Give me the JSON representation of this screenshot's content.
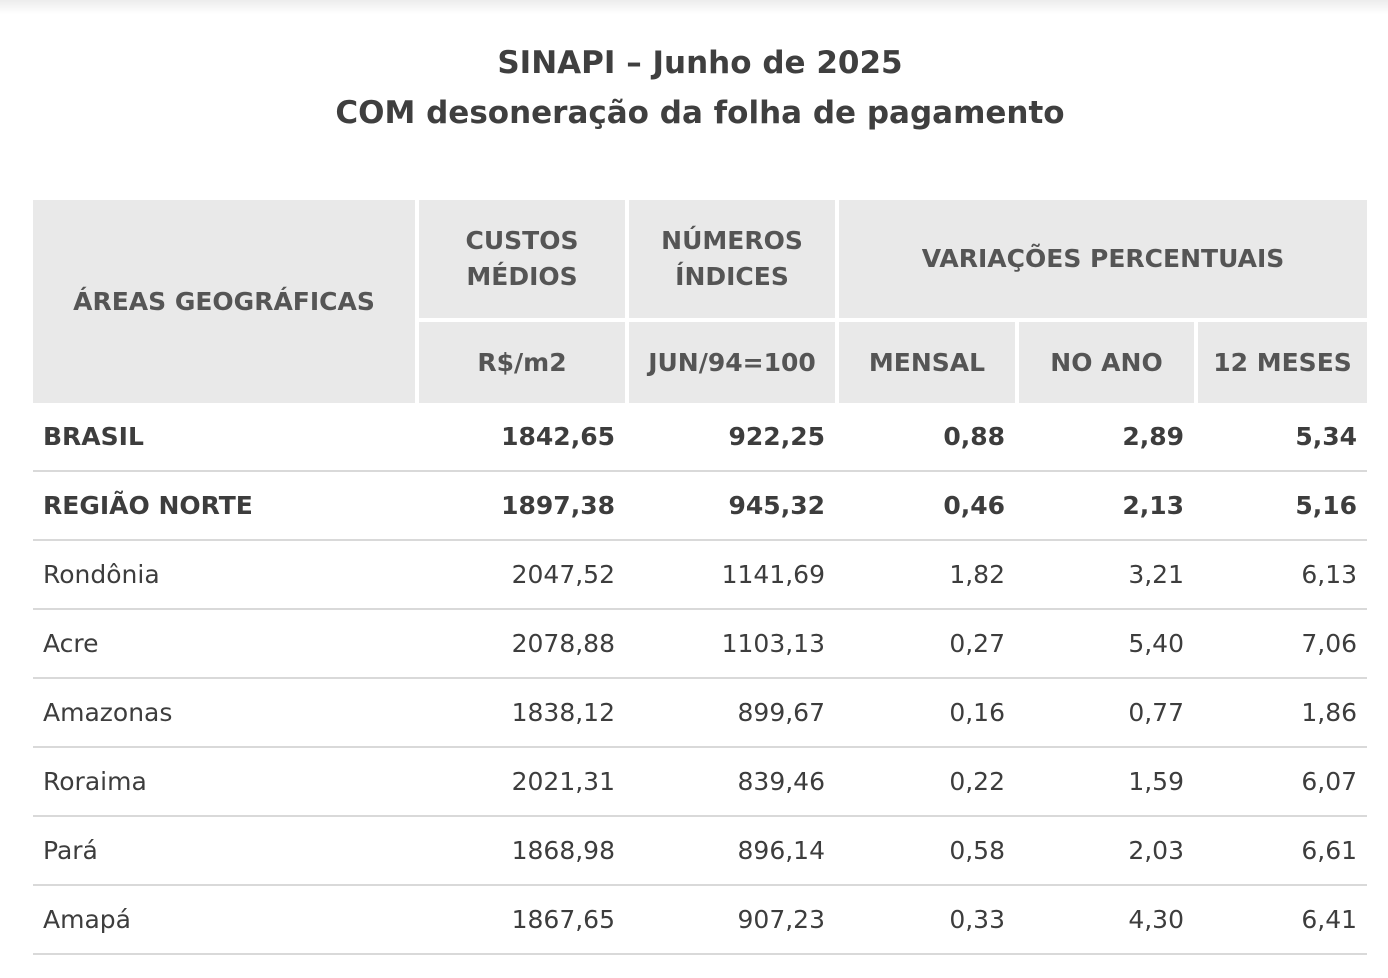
{
  "title": {
    "line1": "SINAPI – Junho de 2025",
    "line2": "COM desoneração da folha de pagamento"
  },
  "table": {
    "headers": {
      "area": "ÁREAS GEOGRÁFICAS",
      "custos": "CUSTOS MÉDIOS",
      "custos_unit": "R$/m2",
      "numeros": "NÚMEROS ÍNDICES",
      "numeros_unit": "JUN/94=100",
      "variacoes": "VARIAÇÕES PERCENTUAIS",
      "mensal": "MENSAL",
      "no_ano": "NO ANO",
      "doze_meses": "12 MESES"
    },
    "rows": [
      {
        "area": "BRASIL",
        "custo": "1842,65",
        "indice": "922,25",
        "mensal": "0,88",
        "ano": "2,89",
        "meses12": "5,34",
        "bold": true
      },
      {
        "area": "REGIÃO NORTE",
        "custo": "1897,38",
        "indice": "945,32",
        "mensal": "0,46",
        "ano": "2,13",
        "meses12": "5,16",
        "bold": true
      },
      {
        "area": "Rondônia",
        "custo": "2047,52",
        "indice": "1141,69",
        "mensal": "1,82",
        "ano": "3,21",
        "meses12": "6,13",
        "bold": false
      },
      {
        "area": "Acre",
        "custo": "2078,88",
        "indice": "1103,13",
        "mensal": "0,27",
        "ano": "5,40",
        "meses12": "7,06",
        "bold": false
      },
      {
        "area": "Amazonas",
        "custo": "1838,12",
        "indice": "899,67",
        "mensal": "0,16",
        "ano": "0,77",
        "meses12": "1,86",
        "bold": false
      },
      {
        "area": "Roraima",
        "custo": "2021,31",
        "indice": "839,46",
        "mensal": "0,22",
        "ano": "1,59",
        "meses12": "6,07",
        "bold": false
      },
      {
        "area": "Pará",
        "custo": "1868,98",
        "indice": "896,14",
        "mensal": "0,58",
        "ano": "2,03",
        "meses12": "6,61",
        "bold": false
      },
      {
        "area": "Amapá",
        "custo": "1867,65",
        "indice": "907,23",
        "mensal": "0,33",
        "ano": "4,30",
        "meses12": "6,41",
        "bold": false
      }
    ]
  }
}
